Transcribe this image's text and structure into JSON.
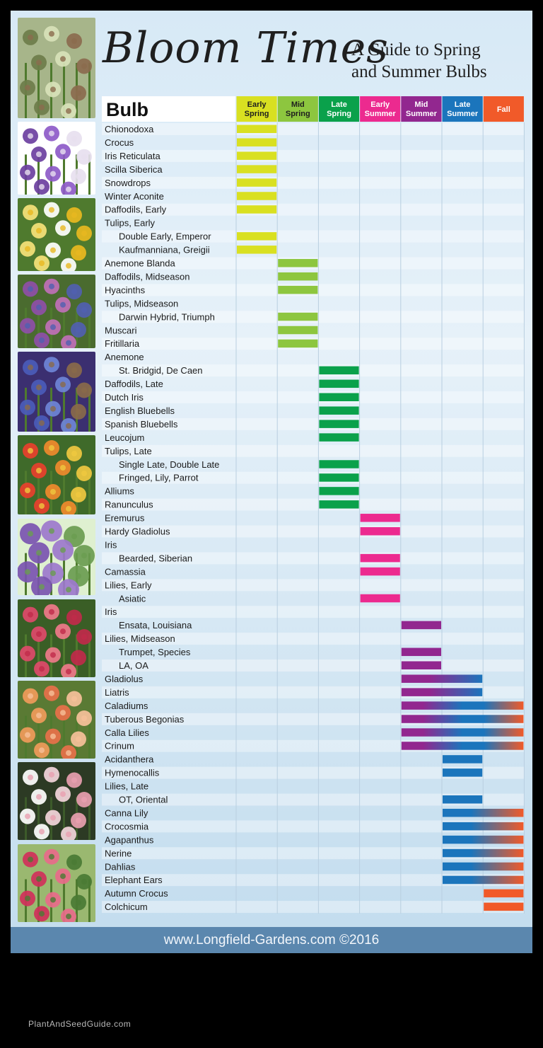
{
  "header": {
    "title": "Bloom Times",
    "subtitle_line1": "A Guide to Spring",
    "subtitle_line2": "and Summer Bulbs"
  },
  "footer": {
    "text": "www.Longfield-Gardens.com  ©2016"
  },
  "watermark": "PlantAndSeedGuide.com",
  "photos": [
    "hyacinth-sprouts",
    "crocus",
    "daffodils",
    "tulips",
    "hyacinths",
    "tulips-late",
    "alliums",
    "dahlias",
    "lilies",
    "begonias",
    "caladiums"
  ],
  "chart_data": {
    "type": "gantt",
    "column_header": "Bulb",
    "periods": [
      {
        "label1": "Early",
        "label2": "Spring",
        "color": "#d9e021",
        "text_color": "#1e1e1e"
      },
      {
        "label1": "Mid",
        "label2": "Spring",
        "color": "#8dc63f",
        "text_color": "#1e1e1e"
      },
      {
        "label1": "Late",
        "label2": "Spring",
        "color": "#0aa14b",
        "text_color": "#ffffff"
      },
      {
        "label1": "Early",
        "label2": "Summer",
        "color": "#ec2a8f",
        "text_color": "#ffffff"
      },
      {
        "label1": "Mid",
        "label2": "Summer",
        "color": "#92278f",
        "text_color": "#ffffff"
      },
      {
        "label1": "Late",
        "label2": "Summer",
        "color": "#1b75bc",
        "text_color": "#ffffff"
      },
      {
        "label1": "Fall",
        "label2": "",
        "color": "#f15a29",
        "text_color": "#ffffff"
      }
    ],
    "rows": [
      {
        "name": "Chionodoxa",
        "indent": false,
        "start": 0,
        "end": 0
      },
      {
        "name": "Crocus",
        "indent": false,
        "start": 0,
        "end": 0
      },
      {
        "name": "Iris Reticulata",
        "indent": false,
        "start": 0,
        "end": 0
      },
      {
        "name": "Scilla Siberica",
        "indent": false,
        "start": 0,
        "end": 0
      },
      {
        "name": "Snowdrops",
        "indent": false,
        "start": 0,
        "end": 0
      },
      {
        "name": "Winter Aconite",
        "indent": false,
        "start": 0,
        "end": 0
      },
      {
        "name": "Daffodils, Early",
        "indent": false,
        "start": 0,
        "end": 0
      },
      {
        "name": "Tulips, Early",
        "indent": false,
        "start": null,
        "end": null
      },
      {
        "name": "Double Early, Emperor",
        "indent": true,
        "start": 0,
        "end": 0
      },
      {
        "name": "Kaufmanniana, Greigii",
        "indent": true,
        "start": 0,
        "end": 0
      },
      {
        "name": "Anemone Blanda",
        "indent": false,
        "start": 1,
        "end": 1
      },
      {
        "name": "Daffodils, Midseason",
        "indent": false,
        "start": 1,
        "end": 1
      },
      {
        "name": "Hyacinths",
        "indent": false,
        "start": 1,
        "end": 1
      },
      {
        "name": "Tulips, Midseason",
        "indent": false,
        "start": null,
        "end": null
      },
      {
        "name": "Darwin Hybrid, Triumph",
        "indent": true,
        "start": 1,
        "end": 1
      },
      {
        "name": "Muscari",
        "indent": false,
        "start": 1,
        "end": 1
      },
      {
        "name": "Fritillaria",
        "indent": false,
        "start": 1,
        "end": 1
      },
      {
        "name": "Anemone",
        "indent": false,
        "start": null,
        "end": null
      },
      {
        "name": "St. Bridgid, De Caen",
        "indent": true,
        "start": 2,
        "end": 2
      },
      {
        "name": "Daffodils, Late",
        "indent": false,
        "start": 2,
        "end": 2
      },
      {
        "name": "Dutch Iris",
        "indent": false,
        "start": 2,
        "end": 2
      },
      {
        "name": "English Bluebells",
        "indent": false,
        "start": 2,
        "end": 2
      },
      {
        "name": "Spanish Bluebells",
        "indent": false,
        "start": 2,
        "end": 2
      },
      {
        "name": "Leucojum",
        "indent": false,
        "start": 2,
        "end": 2
      },
      {
        "name": "Tulips, Late",
        "indent": false,
        "start": null,
        "end": null
      },
      {
        "name": "Single Late, Double Late",
        "indent": true,
        "start": 2,
        "end": 2
      },
      {
        "name": "Fringed, Lily, Parrot",
        "indent": true,
        "start": 2,
        "end": 2
      },
      {
        "name": "Alliums",
        "indent": false,
        "start": 2,
        "end": 2
      },
      {
        "name": "Ranunculus",
        "indent": false,
        "start": 2,
        "end": 2
      },
      {
        "name": "Eremurus",
        "indent": false,
        "start": 3,
        "end": 3
      },
      {
        "name": "Hardy Gladiolus",
        "indent": false,
        "start": 3,
        "end": 3
      },
      {
        "name": "Iris",
        "indent": false,
        "start": null,
        "end": null
      },
      {
        "name": "Bearded, Siberian",
        "indent": true,
        "start": 3,
        "end": 3
      },
      {
        "name": "Camassia",
        "indent": false,
        "start": 3,
        "end": 3
      },
      {
        "name": "Lilies, Early",
        "indent": false,
        "start": null,
        "end": null
      },
      {
        "name": "Asiatic",
        "indent": true,
        "start": 3,
        "end": 3
      },
      {
        "name": "Iris",
        "indent": false,
        "start": null,
        "end": null
      },
      {
        "name": "Ensata, Louisiana",
        "indent": true,
        "start": 4,
        "end": 4
      },
      {
        "name": "Lilies, Midseason",
        "indent": false,
        "start": null,
        "end": null
      },
      {
        "name": "Trumpet, Species",
        "indent": true,
        "start": 4,
        "end": 4
      },
      {
        "name": "LA, OA",
        "indent": true,
        "start": 4,
        "end": 4
      },
      {
        "name": "Gladiolus",
        "indent": false,
        "start": 4,
        "end": 5
      },
      {
        "name": "Liatris",
        "indent": false,
        "start": 4,
        "end": 5
      },
      {
        "name": "Caladiums",
        "indent": false,
        "start": 4,
        "end": 6
      },
      {
        "name": "Tuberous Begonias",
        "indent": false,
        "start": 4,
        "end": 6
      },
      {
        "name": "Calla Lilies",
        "indent": false,
        "start": 4,
        "end": 6
      },
      {
        "name": "Crinum",
        "indent": false,
        "start": 4,
        "end": 6
      },
      {
        "name": "Acidanthera",
        "indent": false,
        "start": 5,
        "end": 5
      },
      {
        "name": "Hymenocallis",
        "indent": false,
        "start": 5,
        "end": 5
      },
      {
        "name": "Lilies, Late",
        "indent": false,
        "start": null,
        "end": null
      },
      {
        "name": "OT, Oriental",
        "indent": true,
        "start": 5,
        "end": 5
      },
      {
        "name": "Canna Lily",
        "indent": false,
        "start": 5,
        "end": 6
      },
      {
        "name": "Crocosmia",
        "indent": false,
        "start": 5,
        "end": 6
      },
      {
        "name": "Agapanthus",
        "indent": false,
        "start": 5,
        "end": 6
      },
      {
        "name": "Nerine",
        "indent": false,
        "start": 5,
        "end": 6
      },
      {
        "name": "Dahlias",
        "indent": false,
        "start": 5,
        "end": 6
      },
      {
        "name": "Elephant Ears",
        "indent": false,
        "start": 5,
        "end": 6
      },
      {
        "name": "Autumn Crocus",
        "indent": false,
        "start": 6,
        "end": 6
      },
      {
        "name": "Colchicum",
        "indent": false,
        "start": 6,
        "end": 6
      }
    ]
  }
}
